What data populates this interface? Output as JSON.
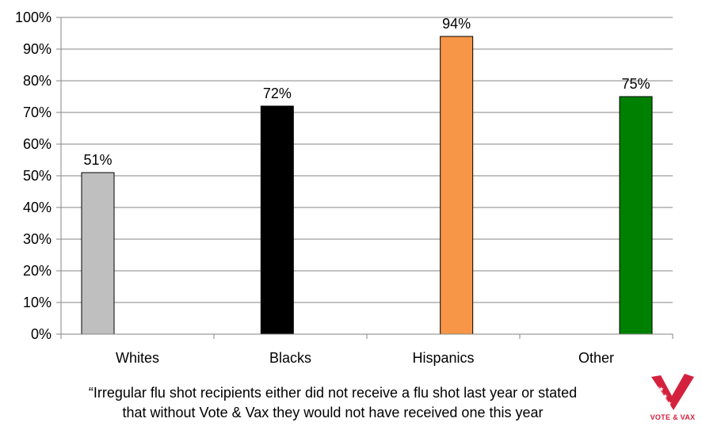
{
  "chart_data": {
    "type": "bar",
    "categories": [
      "Whites",
      "Blacks",
      "Hispanics",
      "Other"
    ],
    "values": [
      51,
      72,
      94,
      75
    ],
    "data_labels": [
      "51%",
      "72%",
      "94%",
      "75%"
    ],
    "colors": [
      "#bfbfbf",
      "#000000",
      "#f79646",
      "#008000"
    ],
    "ylim": [
      0,
      100
    ],
    "yticks": [
      "0%",
      "10%",
      "20%",
      "30%",
      "40%",
      "50%",
      "60%",
      "70%",
      "80%",
      "90%",
      "100%"
    ],
    "grid": true,
    "legend": "none"
  },
  "caption": {
    "line1": "“Irregular flu shot recipients either did not receive a flu shot last year or stated",
    "line2": "that without Vote & Vax they would not have received one this year"
  },
  "logo": {
    "text": "VOTE & VAX",
    "color": "#d4213d"
  }
}
